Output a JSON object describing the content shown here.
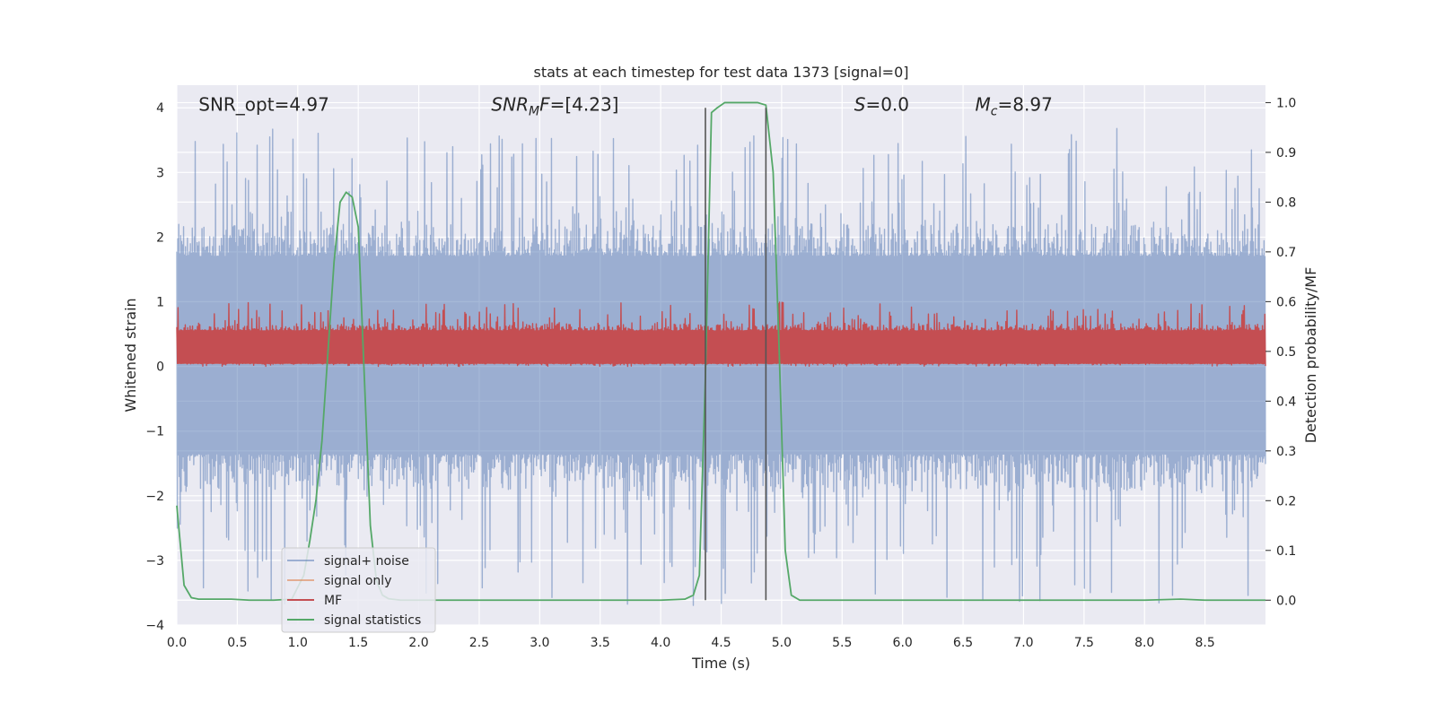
{
  "chart_data": {
    "type": "line",
    "title": "stats at each timestep for test data 1373 [signal=0]",
    "xlabel": "Time (s)",
    "ylabel_left": "Whitened strain",
    "ylabel_right": "Detection probability/MF",
    "xlim": [
      0.0,
      9.0
    ],
    "ylim_left": [
      -4.0,
      4.35
    ],
    "ylim_right": [
      -0.05,
      1.035
    ],
    "xticks": [
      0.0,
      0.5,
      1.0,
      1.5,
      2.0,
      2.5,
      3.0,
      3.5,
      4.0,
      4.5,
      5.0,
      5.5,
      6.0,
      6.5,
      7.0,
      7.5,
      8.0,
      8.5
    ],
    "xtick_labels": [
      "0.0",
      "0.5",
      "1.0",
      "1.5",
      "2.0",
      "2.5",
      "3.0",
      "3.5",
      "4.0",
      "4.5",
      "5.0",
      "5.5",
      "6.0",
      "6.5",
      "7.0",
      "7.5",
      "8.0",
      "8.5"
    ],
    "yticks_left": [
      4,
      3,
      2,
      1,
      0,
      -1,
      -2,
      -3,
      -4
    ],
    "ytick_labels_left": [
      "4",
      "3",
      "2",
      "1",
      "0",
      "−1",
      "−2",
      "−3",
      "−4"
    ],
    "yticks_right": [
      1.0,
      0.9,
      0.8,
      0.7,
      0.6,
      0.5,
      0.4,
      0.3,
      0.2,
      0.1,
      0.0
    ],
    "ytick_labels_right": [
      "1.0",
      "0.9",
      "0.8",
      "0.7",
      "0.6",
      "0.5",
      "0.4",
      "0.3",
      "0.2",
      "0.1",
      "0.0"
    ],
    "grid": true,
    "legend_placement": "lower-left",
    "annotations": [
      {
        "prefix": "SNR_opt",
        "sub": "",
        "suffix": "=4.97",
        "italic": false,
        "x": 0.18,
        "y": 4.05
      },
      {
        "prefix": "SNR",
        "sub": "M",
        "suffix": "F=[4.23]",
        "italic": true,
        "x": 2.6,
        "y": 4.05
      },
      {
        "prefix": "S",
        "sub": "",
        "suffix": "=0.0",
        "italic": true,
        "x": 5.6,
        "y": 4.05
      },
      {
        "prefix": "M",
        "sub": "c",
        "suffix": "=8.97",
        "italic": true,
        "x": 6.6,
        "y": 4.05
      }
    ],
    "vertical_lines": [
      4.37,
      4.87
    ],
    "series": [
      {
        "name": "signal+ noise",
        "axis": "left",
        "color": "#4c72b0",
        "opacity": 0.5,
        "kind": "noise",
        "n_points": 2250,
        "band_low": -1.35,
        "band_high": 1.7,
        "peak_high": 3.7,
        "peak_low": -3.7
      },
      {
        "name": "signal only",
        "axis": "left",
        "color": "#dd8452",
        "opacity": 0.6,
        "kind": "flat",
        "value": 0.05
      },
      {
        "name": "MF",
        "axis": "left",
        "color": "#c44e52",
        "opacity": 1.0,
        "kind": "noise",
        "n_points": 1800,
        "band_low": 0.05,
        "band_high": 0.55,
        "peak_high": 1.0,
        "peak_low": 0.0
      },
      {
        "name": "signal statistics",
        "axis": "right",
        "color": "#55a868",
        "opacity": 1.0,
        "kind": "points",
        "x": [
          0.0,
          0.06,
          0.12,
          0.18,
          0.3,
          0.45,
          0.6,
          0.8,
          0.95,
          1.05,
          1.1,
          1.15,
          1.2,
          1.25,
          1.3,
          1.35,
          1.4,
          1.45,
          1.5,
          1.55,
          1.6,
          1.65,
          1.7,
          1.75,
          1.85,
          2.0,
          3.0,
          4.0,
          4.2,
          4.27,
          4.32,
          4.37,
          4.42,
          4.47,
          4.53,
          4.6,
          4.8,
          4.87,
          4.93,
          4.98,
          5.03,
          5.08,
          5.15,
          5.3,
          7.0,
          8.0,
          8.3,
          8.5,
          9.0
        ],
        "y": [
          0.19,
          0.03,
          0.005,
          0.002,
          0.002,
          0.002,
          0.0,
          0.0,
          0.002,
          0.05,
          0.12,
          0.2,
          0.32,
          0.5,
          0.68,
          0.8,
          0.82,
          0.81,
          0.75,
          0.45,
          0.15,
          0.04,
          0.01,
          0.003,
          0.0,
          0.0,
          0.0,
          0.0,
          0.002,
          0.01,
          0.05,
          0.45,
          0.98,
          0.99,
          1.0,
          1.0,
          1.0,
          0.995,
          0.86,
          0.5,
          0.1,
          0.01,
          0.0,
          0.0,
          0.0,
          0.0,
          0.002,
          0.0,
          0.0
        ]
      }
    ]
  }
}
